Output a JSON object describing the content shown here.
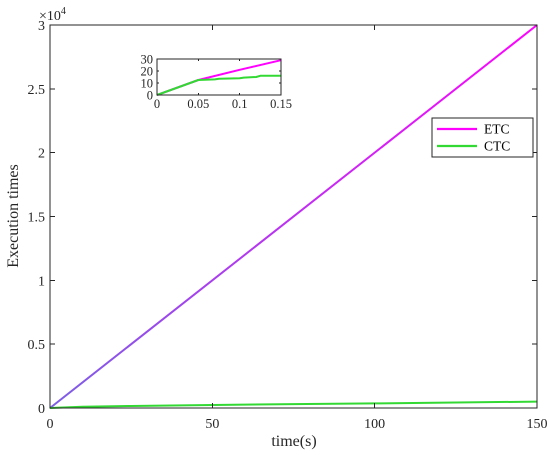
{
  "chart_data": [
    {
      "type": "line",
      "xlabel": "time(s)",
      "ylabel": "Execution times",
      "xlim": [
        0,
        150
      ],
      "ylim": [
        0,
        30000
      ],
      "xticks": [
        0,
        50,
        100,
        150
      ],
      "xtick_labels": [
        "0",
        "50",
        "100",
        "150"
      ],
      "yticks": [
        0,
        5000,
        10000,
        15000,
        20000,
        25000,
        30000
      ],
      "ytick_labels": [
        "0",
        "0.5",
        "1",
        "1.5",
        "2",
        "2.5",
        "3"
      ],
      "y_multiplier": {
        "base": "×10",
        "exponent": "4"
      },
      "grid": false,
      "box": true,
      "legend": {
        "placement": "upper-right"
      },
      "series": [
        {
          "name": "ETC",
          "color": "#ff00ff",
          "color_low": "#7c5fe6",
          "x": [
            0,
            150
          ],
          "y": [
            0,
            30000
          ]
        },
        {
          "name": "CTC",
          "color": "#33d933",
          "x": [
            0,
            10,
            25,
            50,
            75,
            100,
            125,
            150
          ],
          "y": [
            0,
            100,
            160,
            240,
            300,
            360,
            430,
            500
          ]
        }
      ]
    },
    {
      "type": "line",
      "inset": true,
      "xlim": [
        0,
        0.15
      ],
      "ylim": [
        0,
        30
      ],
      "xticks": [
        0,
        0.05,
        0.1,
        0.15
      ],
      "xtick_labels": [
        "0",
        "0.05",
        "0.1",
        "0.15"
      ],
      "yticks": [
        0,
        10,
        20,
        30
      ],
      "ytick_labels": [
        "0",
        "10",
        "20",
        "30"
      ],
      "grid": false,
      "box": true,
      "series": [
        {
          "color": "#ff00ff",
          "x": [
            0,
            0.05,
            0.1,
            0.15
          ],
          "y": [
            0,
            12.5,
            21,
            29
          ]
        },
        {
          "color": "#33d933",
          "x": [
            0,
            0.05,
            0.07,
            0.075,
            0.1,
            0.105,
            0.12,
            0.125,
            0.15
          ],
          "y": [
            0,
            12.5,
            13,
            13.5,
            14,
            14.5,
            15,
            16,
            16
          ]
        }
      ]
    }
  ]
}
